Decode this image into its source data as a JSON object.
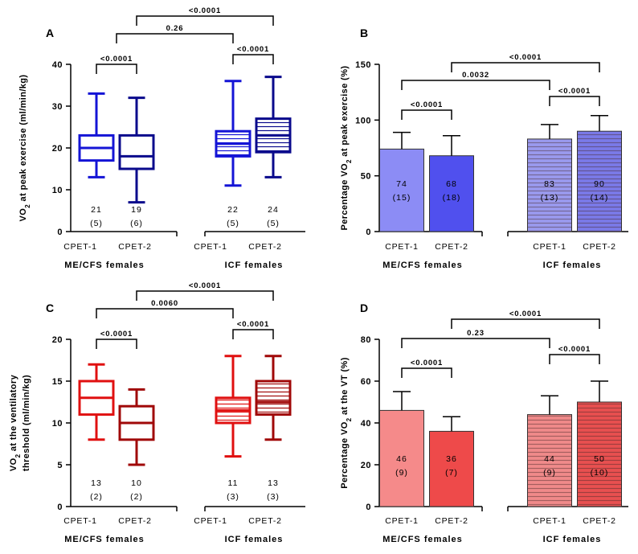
{
  "chart_data": [
    {
      "panel": "A",
      "type": "box",
      "ylabel_main": "VO",
      "ylabel_sub": "2",
      "ylabel_rest": " at peak exercise (ml/min/kg)",
      "ylim": [
        0,
        40
      ],
      "yticks": [
        0,
        10,
        20,
        30,
        40
      ],
      "groups": [
        "ME/CFS females",
        "ICF females"
      ],
      "series": [
        {
          "group": 0,
          "category": "CPET-1",
          "min": 13,
          "q1": 17,
          "median": 20,
          "q3": 23,
          "max": 33,
          "mean": "21",
          "sd": "(5)",
          "color": "#1414d6",
          "hatched": false
        },
        {
          "group": 0,
          "category": "CPET-2",
          "min": 7,
          "q1": 15,
          "median": 18,
          "q3": 23,
          "max": 32,
          "mean": "19",
          "sd": "(6)",
          "color": "#0a0a8c",
          "hatched": false
        },
        {
          "group": 1,
          "category": "CPET-1",
          "min": 11,
          "q1": 18,
          "median": 21,
          "q3": 24,
          "max": 36,
          "mean": "22",
          "sd": "(5)",
          "color": "#1414d6",
          "hatched": true
        },
        {
          "group": 1,
          "category": "CPET-2",
          "min": 13,
          "q1": 19,
          "median": 23,
          "q3": 27,
          "max": 37,
          "mean": "24",
          "sd": "(5)",
          "color": "#0a0a8c",
          "hatched": true
        }
      ],
      "comparisons": [
        {
          "from": 0,
          "to": 1,
          "label": "<0.0001"
        },
        {
          "from": 2,
          "to": 3,
          "label": "<0.0001"
        },
        {
          "from": 0.5,
          "to": 2,
          "label": "0.26"
        },
        {
          "from": 1,
          "to": 3,
          "label": "<0.0001"
        }
      ]
    },
    {
      "panel": "B",
      "type": "bar",
      "ylabel_main": "Percentage VO",
      "ylabel_sub": "2",
      "ylabel_rest": " at peak exercise (%)",
      "ylim": [
        0,
        150
      ],
      "yticks": [
        0,
        50,
        100,
        150
      ],
      "groups": [
        "ME/CFS females",
        "ICF females"
      ],
      "series": [
        {
          "group": 0,
          "category": "CPET-1",
          "mean": 74,
          "sd": 15,
          "label": "74",
          "sdlabel": "(15)",
          "color": "#8c8cf5",
          "hatched": false
        },
        {
          "group": 0,
          "category": "CPET-2",
          "mean": 68,
          "sd": 18,
          "label": "68",
          "sdlabel": "(18)",
          "color": "#5050ee",
          "hatched": false
        },
        {
          "group": 1,
          "category": "CPET-1",
          "mean": 83,
          "sd": 13,
          "label": "83",
          "sdlabel": "(13)",
          "color": "#9a9aee",
          "hatched": true
        },
        {
          "group": 1,
          "category": "CPET-2",
          "mean": 90,
          "sd": 14,
          "label": "90",
          "sdlabel": "(14)",
          "color": "#7a7ae8",
          "hatched": true
        }
      ],
      "comparisons": [
        {
          "from": 0,
          "to": 1,
          "label": "<0.0001"
        },
        {
          "from": 2,
          "to": 3,
          "label": "<0.0001"
        },
        {
          "from": 0,
          "to": 2,
          "label": "0.0032"
        },
        {
          "from": 1,
          "to": 3,
          "label": "<0.0001"
        }
      ]
    },
    {
      "panel": "C",
      "type": "box",
      "ylabel_main": "VO",
      "ylabel_sub": "2",
      "ylabel_rest": " at the ventilatory",
      "ylabel_line2": "threshold (ml/min/kg)",
      "ylim": [
        0,
        20
      ],
      "yticks": [
        0,
        5,
        10,
        15,
        20
      ],
      "groups": [
        "ME/CFS females",
        "ICF females"
      ],
      "series": [
        {
          "group": 0,
          "category": "CPET-1",
          "min": 8,
          "q1": 11,
          "median": 13,
          "q3": 15,
          "max": 17,
          "mean": "13",
          "sd": "(2)",
          "color": "#e01010",
          "hatched": false
        },
        {
          "group": 0,
          "category": "CPET-2",
          "min": 5,
          "q1": 8,
          "median": 10,
          "q3": 12,
          "max": 14,
          "mean": "10",
          "sd": "(2)",
          "color": "#a00808",
          "hatched": false
        },
        {
          "group": 1,
          "category": "CPET-1",
          "min": 6,
          "q1": 10,
          "median": 11.5,
          "q3": 13,
          "max": 18,
          "mean": "11",
          "sd": "(3)",
          "color": "#e01010",
          "hatched": true
        },
        {
          "group": 1,
          "category": "CPET-2",
          "min": 8,
          "q1": 11,
          "median": 12.5,
          "q3": 15,
          "max": 18,
          "mean": "13",
          "sd": "(3)",
          "color": "#a00808",
          "hatched": true
        }
      ],
      "comparisons": [
        {
          "from": 0,
          "to": 1,
          "label": "<0.0001"
        },
        {
          "from": 2,
          "to": 3,
          "label": "<0.0001"
        },
        {
          "from": 0,
          "to": 2,
          "label": "0.0060"
        },
        {
          "from": 1,
          "to": 3,
          "label": "<0.0001"
        }
      ]
    },
    {
      "panel": "D",
      "type": "bar",
      "ylabel_main": "Percentage VO",
      "ylabel_sub": "2",
      "ylabel_rest": " at the VT (%)",
      "ylim": [
        0,
        80
      ],
      "yticks": [
        0,
        20,
        40,
        60,
        80
      ],
      "groups": [
        "ME/CFS females",
        "ICF females"
      ],
      "series": [
        {
          "group": 0,
          "category": "CPET-1",
          "mean": 46,
          "sd": 9,
          "label": "46",
          "sdlabel": "(9)",
          "color": "#f58a8a",
          "hatched": false
        },
        {
          "group": 0,
          "category": "CPET-2",
          "mean": 36,
          "sd": 7,
          "label": "36",
          "sdlabel": "(7)",
          "color": "#ee4a4a",
          "hatched": false
        },
        {
          "group": 1,
          "category": "CPET-1",
          "mean": 44,
          "sd": 9,
          "label": "44",
          "sdlabel": "(9)",
          "color": "#f08a8a",
          "hatched": true
        },
        {
          "group": 1,
          "category": "CPET-2",
          "mean": 50,
          "sd": 10,
          "label": "50",
          "sdlabel": "(10)",
          "color": "#e85050",
          "hatched": true
        }
      ],
      "comparisons": [
        {
          "from": 0,
          "to": 1,
          "label": "<0.0001"
        },
        {
          "from": 2,
          "to": 3,
          "label": "<0.0001"
        },
        {
          "from": 0,
          "to": 2,
          "label": "0.23"
        },
        {
          "from": 1,
          "to": 3,
          "label": "<0.0001"
        }
      ]
    }
  ]
}
